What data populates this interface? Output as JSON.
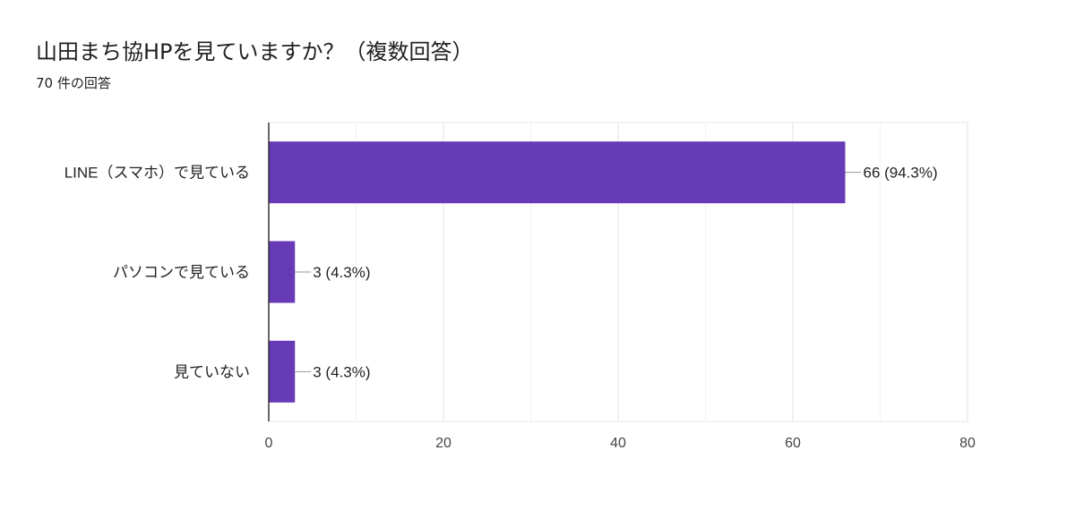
{
  "chart_data": {
    "type": "bar",
    "orientation": "horizontal",
    "title": "山田まち協HPを見ていますか？（複数回答）",
    "subtitle": "70 件の回答",
    "categories": [
      "LINE（スマホ）で見ている",
      "パソコンで見ている",
      "見ていない"
    ],
    "values": [
      66,
      3,
      3
    ],
    "data_labels": [
      "66 (94.3%)",
      "3 (4.3%)",
      "3 (4.3%)"
    ],
    "xlim": [
      0,
      80
    ],
    "xticks": [
      0,
      20,
      40,
      60,
      80
    ],
    "minor_gridlines": [
      10,
      30,
      50,
      70
    ],
    "grid": true,
    "bar_color": "#673ab7"
  }
}
